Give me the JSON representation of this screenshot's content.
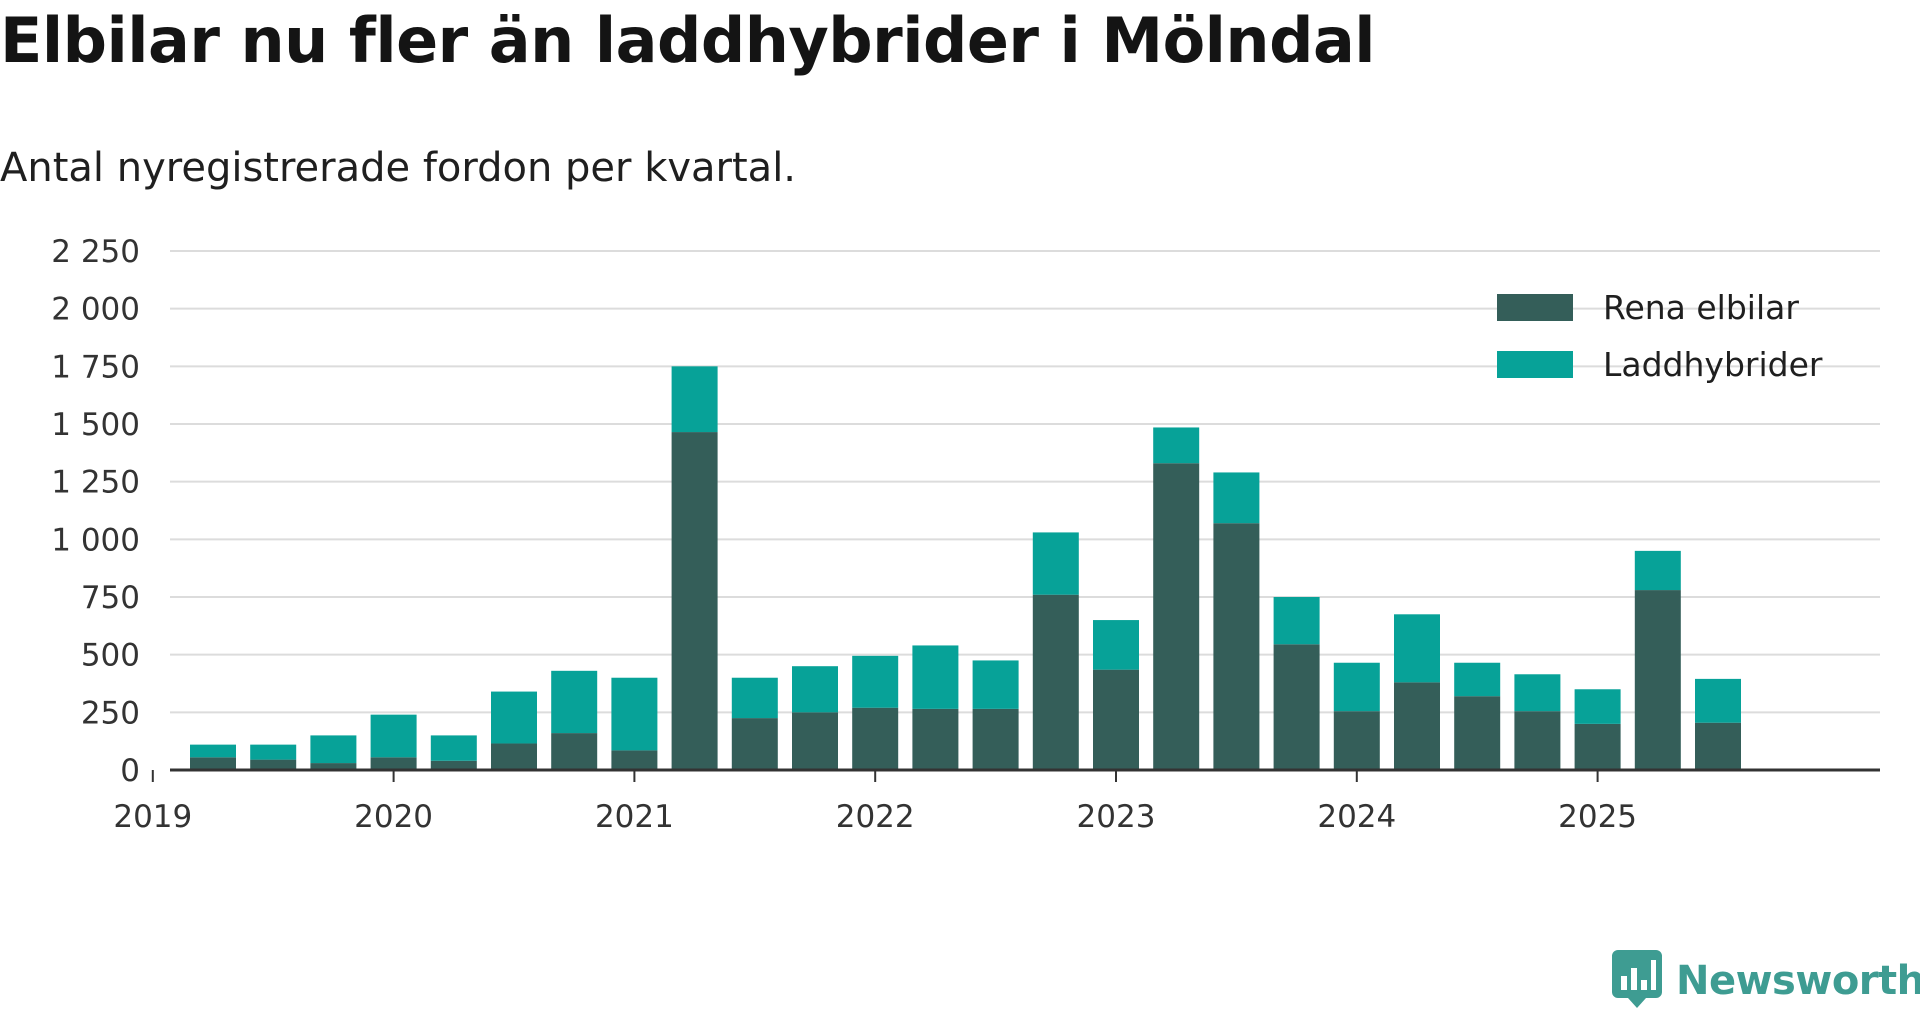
{
  "title": "Elbilar nu fler än laddhybrider i Mölndal",
  "subtitle": "Antal nyregistrerade fordon per kvartal.",
  "brand": {
    "name": "Newsworthy",
    "color": "#3e9c92"
  },
  "chart_data": {
    "type": "bar",
    "stacked": true,
    "categories": [
      "2019 Q1",
      "2019 Q2",
      "2019 Q3",
      "2019 Q4",
      "2020 Q1",
      "2020 Q2",
      "2020 Q3",
      "2020 Q4",
      "2021 Q1",
      "2021 Q2",
      "2021 Q3",
      "2021 Q4",
      "2022 Q1",
      "2022 Q2",
      "2022 Q3",
      "2022 Q4",
      "2023 Q1",
      "2023 Q2",
      "2023 Q3",
      "2023 Q4",
      "2024 Q1",
      "2024 Q2",
      "2024 Q3",
      "2024 Q4",
      "2025 Q1",
      "2025 Q2",
      "2025 Q3"
    ],
    "series": [
      {
        "name": "Rena elbilar",
        "color": "#345e59",
        "values": [
          0,
          55,
          45,
          30,
          55,
          40,
          115,
          160,
          85,
          1465,
          225,
          250,
          270,
          265,
          265,
          760,
          435,
          1330,
          1070,
          545,
          255,
          380,
          320,
          255,
          200,
          780,
          205
        ]
      },
      {
        "name": "Laddhybrider",
        "color": "#07a298",
        "values": [
          0,
          55,
          65,
          120,
          185,
          110,
          225,
          270,
          315,
          285,
          175,
          200,
          225,
          275,
          210,
          270,
          215,
          155,
          220,
          205,
          210,
          295,
          145,
          160,
          150,
          170,
          190
        ]
      }
    ],
    "x_tick_labels": [
      "2019",
      "2020",
      "2021",
      "2022",
      "2023",
      "2024",
      "2025"
    ],
    "y_tick_labels": [
      "0",
      "250",
      "500",
      "750",
      "1 000",
      "1 250",
      "1 500",
      "1 750",
      "2 000",
      "2 250"
    ],
    "y_ticks": [
      0,
      250,
      500,
      750,
      1000,
      1250,
      1500,
      1750,
      2000,
      2250
    ],
    "ylim": [
      0,
      2250
    ],
    "grid": true,
    "legend_position": "top-right",
    "title": "Elbilar nu fler än laddhybrider i Mölndal",
    "subtitle": "Antal nyregistrerade fordon per kvartal.",
    "xlabel": "",
    "ylabel": ""
  }
}
